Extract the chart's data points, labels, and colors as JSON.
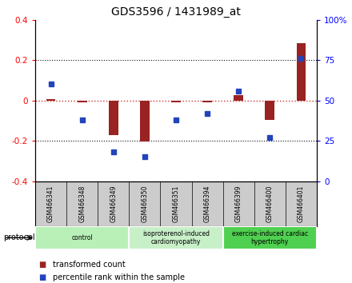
{
  "title": "GDS3596 / 1431989_at",
  "samples": [
    "GSM466341",
    "GSM466348",
    "GSM466349",
    "GSM466350",
    "GSM466351",
    "GSM466394",
    "GSM466399",
    "GSM466400",
    "GSM466401"
  ],
  "transformed_count": [
    0.005,
    -0.01,
    -0.17,
    -0.205,
    -0.01,
    -0.01,
    0.025,
    -0.095,
    0.285
  ],
  "percentile_rank_pct": [
    60,
    38,
    18,
    15,
    38,
    42,
    56,
    27,
    76
  ],
  "ylim_left": [
    -0.4,
    0.4
  ],
  "ylim_right": [
    0,
    100
  ],
  "groups": [
    {
      "label": "control",
      "start": 0,
      "end": 3,
      "color": "#b8f0b8"
    },
    {
      "label": "isoproterenol-induced\ncardiomyopathy",
      "start": 3,
      "end": 6,
      "color": "#c8f0c8"
    },
    {
      "label": "exercise-induced cardiac\nhypertrophy",
      "start": 6,
      "end": 9,
      "color": "#50d050"
    }
  ],
  "bar_color": "#992222",
  "dot_color": "#2244bb",
  "grid_color": "#111111",
  "zero_line_color": "#cc3333",
  "background_color": "#ffffff",
  "sample_bg_color": "#cccccc",
  "title_fontsize": 10
}
